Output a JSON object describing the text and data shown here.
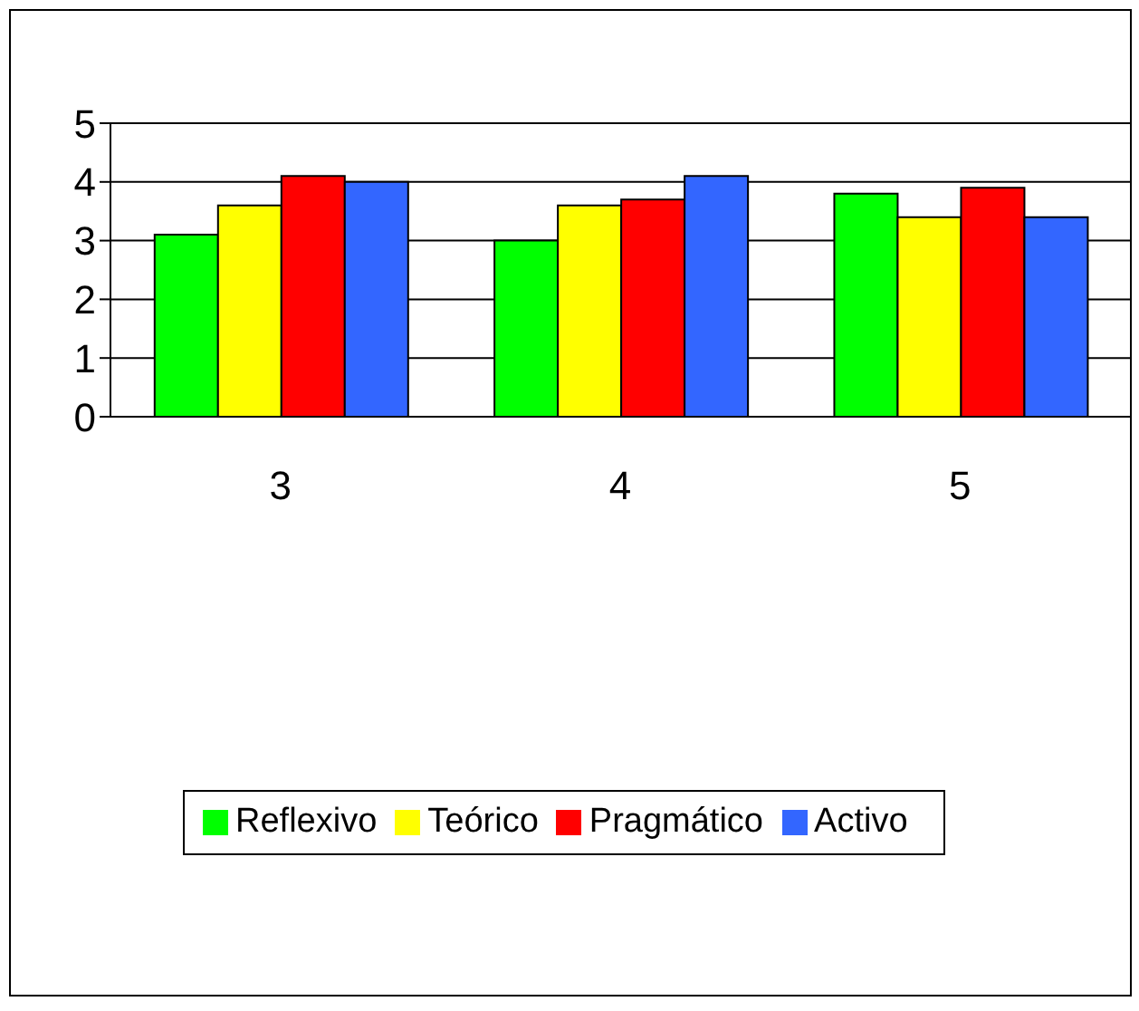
{
  "chart_data": {
    "type": "bar",
    "categories": [
      "3",
      "4",
      "5"
    ],
    "series": [
      {
        "name": "Reflexivo",
        "color": "#00ff00",
        "values": [
          3.1,
          3.0,
          3.8
        ]
      },
      {
        "name": "Teórico",
        "color": "#ffff00",
        "values": [
          3.6,
          3.6,
          3.4
        ]
      },
      {
        "name": "Pragmático",
        "color": "#ff0000",
        "values": [
          4.1,
          3.7,
          3.9
        ]
      },
      {
        "name": "Activo",
        "color": "#3366ff",
        "values": [
          4.0,
          4.1,
          3.4
        ]
      }
    ],
    "ylim": [
      0,
      5
    ],
    "yticks": [
      0,
      1,
      2,
      3,
      4,
      5
    ],
    "grid": "y",
    "legend": "bottom"
  }
}
